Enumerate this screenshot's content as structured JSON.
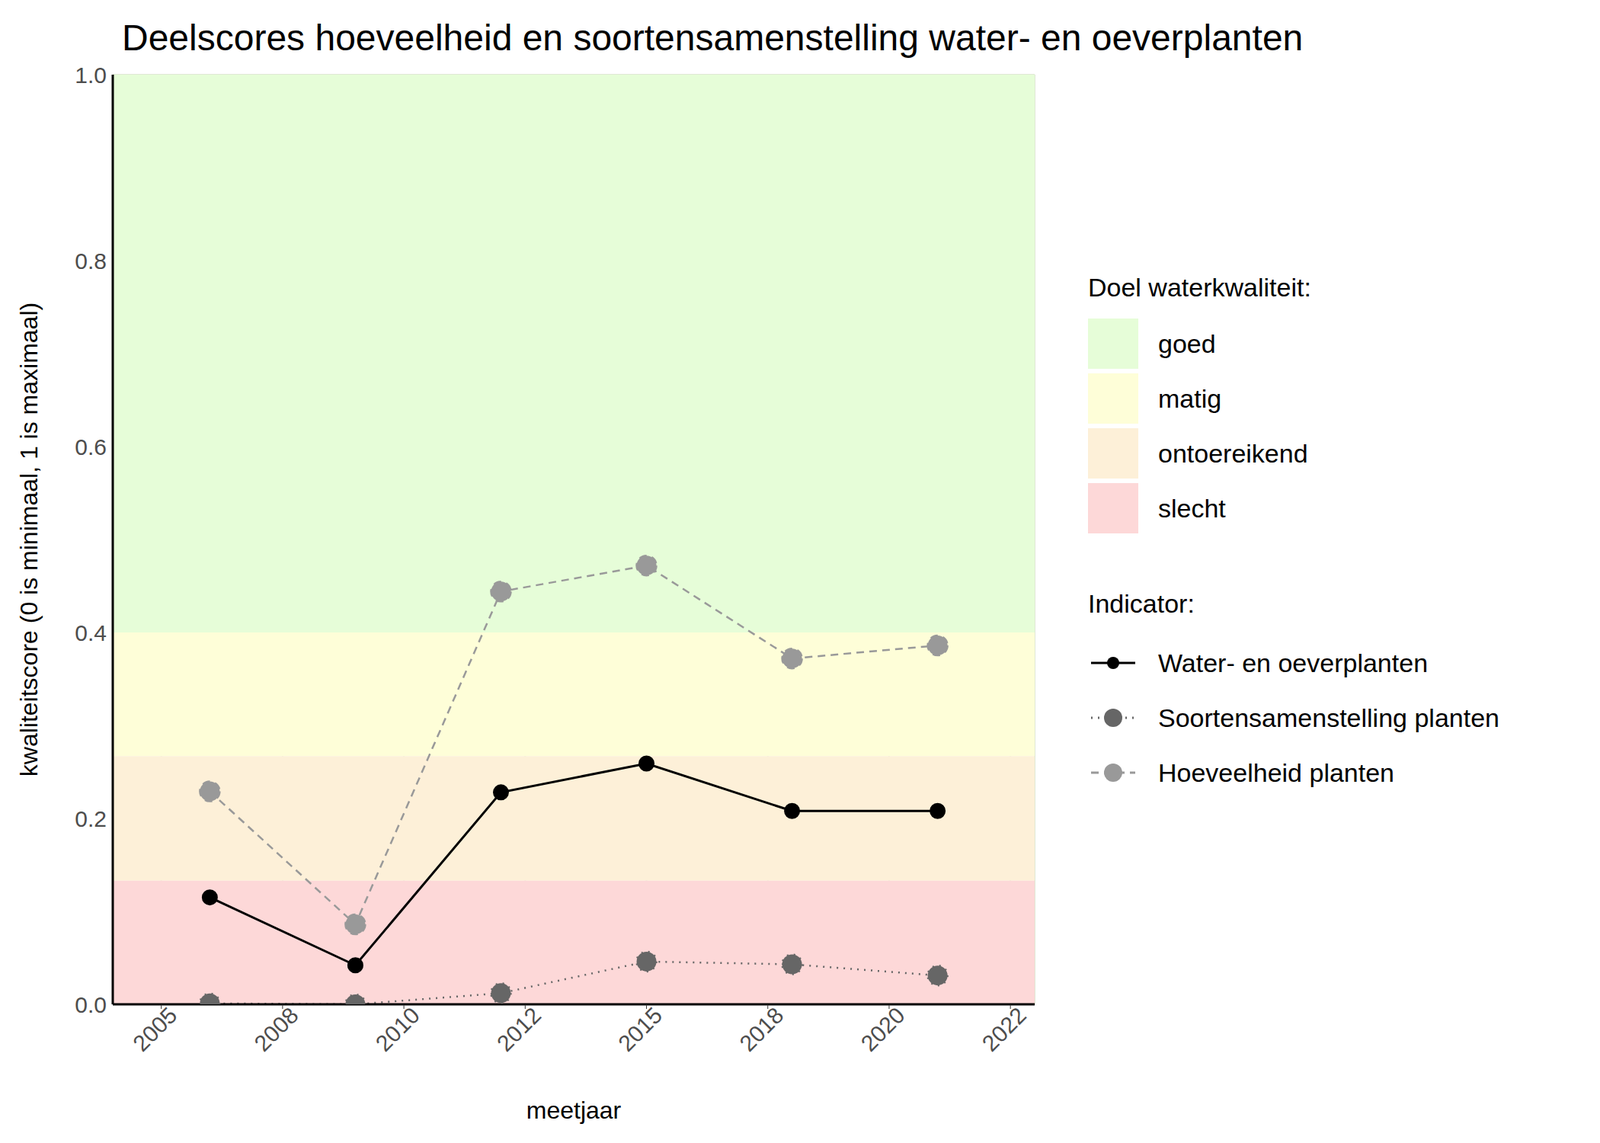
{
  "chart_data": {
    "type": "line",
    "title": "Deelscores hoeveelheid en soortensamenstelling water- en oeverplanten",
    "x_label": "meetjaar",
    "y_label": "kwaliteitscore (0 is minimaal, 1 is maximaal)",
    "xlim": [
      2004,
      2023
    ],
    "xticks": [
      2005,
      {
        "value": 2007.5,
        "label": "2008"
      },
      2010,
      {
        "value": 2012.5,
        "label": "2012"
      },
      2015,
      {
        "value": 2017.5,
        "label": "2018"
      },
      2020,
      {
        "value": 2022.5,
        "label": "2022"
      }
    ],
    "ylim": [
      0,
      1
    ],
    "yticks": [
      {
        "value": 0,
        "label": "0.0"
      },
      0.2,
      0.4,
      0.6,
      0.8,
      {
        "value": 1,
        "label": "1.0"
      }
    ],
    "grid": true,
    "legend": "right",
    "bands_title": "Doel waterkwaliteit:",
    "bands": [
      {
        "name": "goed",
        "from": 0.4,
        "to": 1,
        "color": "#e6fdd8"
      },
      {
        "name": "matig",
        "from": 0.267,
        "to": 0.4,
        "color": "#fefed8"
      },
      {
        "name": "ontoereikend",
        "from": 0.133,
        "to": 0.267,
        "color": "#fdf0d8"
      },
      {
        "name": "slecht",
        "from": 0,
        "to": 0.133,
        "color": "#fdd8d8"
      }
    ],
    "legend_title": "Indicator:",
    "x": [
      2006,
      2009,
      2012,
      2015,
      2018,
      2021
    ],
    "series": [
      {
        "name": "Water- en oeverplanten",
        "color": "#000000",
        "marker": "circle",
        "line_style": "solid",
        "values": [
          0.115,
          0.042,
          0.228,
          0.259,
          0.208,
          0.208
        ]
      },
      {
        "name": "Soortensamenstelling planten",
        "color": "#666666",
        "marker": "circle",
        "line_style": "dotted",
        "values": [
          0.001,
          0.0,
          0.012,
          0.046,
          0.043,
          0.031
        ]
      },
      {
        "name": "Hoeveelheid planten",
        "color": "#999999",
        "marker": "circle",
        "line_style": "dashed",
        "values": [
          0.229,
          0.086,
          0.444,
          0.472,
          0.372,
          0.386
        ]
      }
    ]
  }
}
